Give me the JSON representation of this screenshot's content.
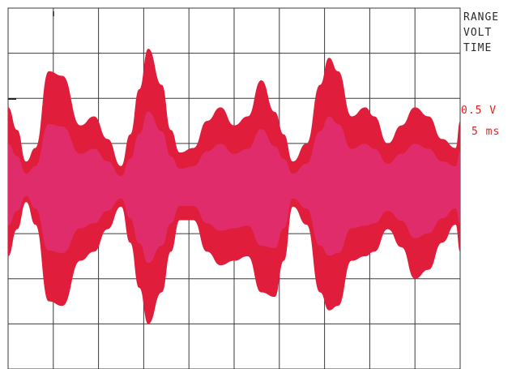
{
  "chart_data": {
    "type": "area",
    "title": "",
    "xlabel": "",
    "ylabel": "",
    "grid": true,
    "grid_divisions": {
      "x": 10,
      "y": 8
    },
    "xlim": [
      0,
      10
    ],
    "ylim": [
      -4,
      4
    ],
    "units": "divisions",
    "series": [
      {
        "color": "#e01e3c",
        "core_color": "#e0327a",
        "x": [
          0,
          0.2,
          0.4,
          0.6,
          0.9,
          1.2,
          1.6,
          1.9,
          2.2,
          2.5,
          2.7,
          2.9,
          3.1,
          3.4,
          3.6,
          3.8,
          4.1,
          4.4,
          4.7,
          5.0,
          5.3,
          5.6,
          5.9,
          6.1,
          6.3,
          6.6,
          6.9,
          7.1,
          7.3,
          7.6,
          7.9,
          8.1,
          8.4,
          8.7,
          9.0,
          9.3,
          9.6,
          9.9,
          10
        ],
        "upper": [
          1.8,
          1.3,
          0.6,
          0.9,
          2.6,
          2.5,
          1.4,
          1.6,
          1.1,
          0.5,
          1.2,
          2.2,
          3.1,
          2.3,
          1.3,
          0.8,
          0.9,
          1.5,
          1.8,
          1.4,
          1.6,
          2.4,
          1.7,
          1.2,
          0.6,
          1.0,
          2.3,
          2.9,
          2.6,
          1.6,
          1.8,
          1.6,
          1.0,
          1.4,
          1.8,
          1.6,
          1.1,
          0.9,
          1.5
        ],
        "lower": [
          -1.5,
          -0.9,
          -0.3,
          -0.8,
          -2.5,
          -2.6,
          -1.6,
          -1.4,
          -0.9,
          -0.4,
          -1.2,
          -2.2,
          -3.0,
          -2.3,
          -1.4,
          -0.7,
          -0.7,
          -1.4,
          -1.7,
          -1.6,
          -1.5,
          -2.3,
          -2.4,
          -1.6,
          -0.4,
          -0.8,
          -2.3,
          -2.7,
          -2.6,
          -1.6,
          -1.5,
          -1.4,
          -0.9,
          -1.3,
          -2.0,
          -1.8,
          -1.2,
          -0.8,
          -1.4
        ]
      }
    ]
  },
  "readout": {
    "line1": "RANGE",
    "line2": "VOLT",
    "line3": "TIME",
    "volt_value": "0.5 V",
    "time_value": "5 ms"
  },
  "colors": {
    "grid": "#3a3a3a",
    "text": "#2a2a2a",
    "settings_text": "#e0211f",
    "trace_outer": "#e01e3c",
    "trace_inner": "#e0327a"
  }
}
